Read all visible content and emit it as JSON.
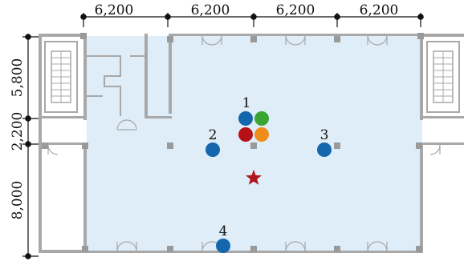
{
  "dimensions": {
    "horizontal": [
      "6,200",
      "6,200",
      "6,200",
      "6,200"
    ],
    "vertical": [
      "5,800",
      "2,200",
      "8,000"
    ]
  },
  "points": [
    {
      "label": "1"
    },
    {
      "label": "2"
    },
    {
      "label": "3"
    },
    {
      "label": "4"
    }
  ],
  "colors": {
    "room_fill": "#deedf8",
    "wall": "#a8a8a8",
    "column": "#9a9a9a",
    "point_blue": "#1466ad",
    "point_green": "#3aa535",
    "point_red": "#b51218",
    "point_orange": "#ee8d1a",
    "star": "#b0161d"
  },
  "marker": {
    "icon": "star-icon"
  }
}
